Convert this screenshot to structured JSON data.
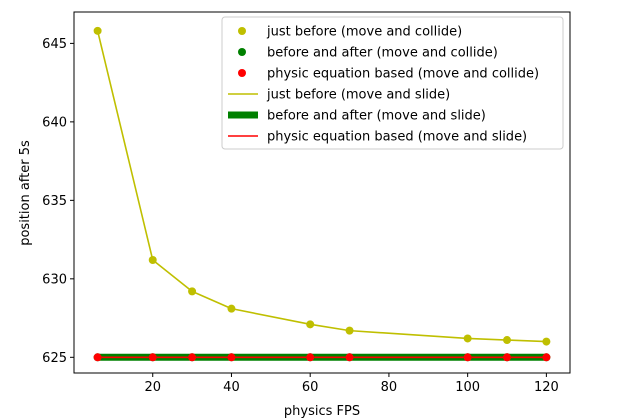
{
  "chart_data": {
    "type": "line",
    "title": "",
    "xlabel": "physics FPS",
    "ylabel": "position after 5s",
    "xlim": [
      0,
      126
    ],
    "ylim": [
      624.0,
      647.0
    ],
    "xticks": [
      20,
      40,
      60,
      80,
      100,
      120
    ],
    "yticks": [
      625,
      630,
      635,
      640,
      645
    ],
    "legend_position": "top-right",
    "grid": false,
    "x": [
      6,
      20,
      30,
      40,
      60,
      70,
      100,
      110,
      120
    ],
    "series": [
      {
        "name": "just before (move and collide)",
        "kind": "markers",
        "color": "#bfbf00",
        "values": [
          645.8,
          631.2,
          629.2,
          628.1,
          627.1,
          626.7,
          626.2,
          626.1,
          626.0
        ]
      },
      {
        "name": "before and after (move and collide)",
        "kind": "markers",
        "color": "#008000",
        "values": [
          625.0,
          625.0,
          625.0,
          625.0,
          625.0,
          625.0,
          625.0,
          625.0,
          625.0
        ]
      },
      {
        "name": "physic equation based (move and collide)",
        "kind": "markers",
        "color": "#ff0000",
        "values": [
          625.0,
          625.0,
          625.0,
          625.0,
          625.0,
          625.0,
          625.0,
          625.0,
          625.0
        ]
      },
      {
        "name": "just before (move and slide)",
        "kind": "line",
        "color": "#bfbf00",
        "values": [
          645.8,
          631.2,
          629.2,
          628.1,
          627.1,
          626.7,
          626.2,
          626.1,
          626.0
        ]
      },
      {
        "name": "before and after (move and slide)",
        "kind": "thickline",
        "color": "#008000",
        "values": [
          625.0,
          625.0,
          625.0,
          625.0,
          625.0,
          625.0,
          625.0,
          625.0,
          625.0
        ]
      },
      {
        "name": "physic equation based (move and slide)",
        "kind": "line",
        "color": "#ff0000",
        "values": [
          625.0,
          625.0,
          625.0,
          625.0,
          625.0,
          625.0,
          625.0,
          625.0,
          625.0
        ]
      }
    ]
  }
}
